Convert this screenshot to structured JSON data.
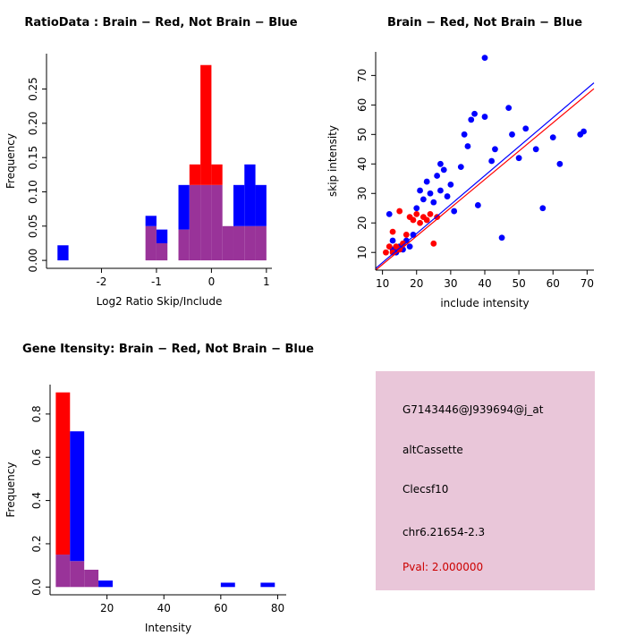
{
  "colors": {
    "red": "#FF0000",
    "blue": "#0000FF",
    "overlap": "#993399",
    "axis": "#000000",
    "info_panel_bg": "#E9C6D9",
    "pval_text": "#CC0000"
  },
  "chart_data": [
    {
      "type": "histogram",
      "title": "RatioData : Brain − Red, Not Brain − Blue",
      "xlabel": "Log2 Ratio Skip/Include",
      "ylabel": "Frequency",
      "xlim": [
        -3.0,
        1.1
      ],
      "ylim": [
        0,
        0.29
      ],
      "grid": false,
      "bin_width": 0.2,
      "xticks": [
        "-2",
        "-1",
        "0",
        "1"
      ],
      "yticks": [
        "0.00",
        "0.05",
        "0.10",
        "0.15",
        "0.20",
        "0.25"
      ],
      "series": [
        {
          "name": "Brain",
          "color": "red",
          "bins": {
            "-1.2": 0.05,
            "-1": 0.025,
            "-0.6": 0.045,
            "-0.4": 0.14,
            "-0.2": 0.285,
            "0": 0.14,
            "0.2": 0.05,
            "0.4": 0.05,
            "0.6": 0.05,
            "0.8": 0.05
          }
        },
        {
          "name": "Not Brain",
          "color": "blue",
          "bins": {
            "-2.8": 0.022,
            "-1.2": 0.065,
            "-1": 0.045,
            "-0.6": 0.11,
            "-0.4": 0.11,
            "-0.2": 0.11,
            "0": 0.11,
            "0.2": 0.05,
            "0.4": 0.11,
            "0.6": 0.14,
            "0.8": 0.11
          }
        }
      ]
    },
    {
      "type": "scatter",
      "title": "Brain − Red, Not Brain − Blue",
      "xlabel": "include intensity",
      "ylabel": "skip intensity",
      "xlim": [
        8,
        72
      ],
      "ylim": [
        4,
        78
      ],
      "grid": false,
      "xticks": [
        "10",
        "20",
        "30",
        "40",
        "50",
        "60",
        "70"
      ],
      "yticks": [
        "10",
        "20",
        "30",
        "40",
        "50",
        "60",
        "70"
      ],
      "series": [
        {
          "name": "Not Brain",
          "color": "blue",
          "points": [
            [
              12,
              23
            ],
            [
              13,
              11
            ],
            [
              13,
              14
            ],
            [
              14,
              10
            ],
            [
              15,
              12
            ],
            [
              16,
              11
            ],
            [
              17,
              14
            ],
            [
              18,
              12
            ],
            [
              19,
              16
            ],
            [
              20,
              25
            ],
            [
              21,
              31
            ],
            [
              22,
              28
            ],
            [
              23,
              34
            ],
            [
              24,
              30
            ],
            [
              25,
              27
            ],
            [
              26,
              36
            ],
            [
              27,
              31
            ],
            [
              27,
              40
            ],
            [
              28,
              38
            ],
            [
              29,
              29
            ],
            [
              30,
              33
            ],
            [
              31,
              24
            ],
            [
              33,
              39
            ],
            [
              34,
              50
            ],
            [
              35,
              46
            ],
            [
              36,
              55
            ],
            [
              37,
              57
            ],
            [
              38,
              26
            ],
            [
              40,
              76
            ],
            [
              40,
              56
            ],
            [
              42,
              41
            ],
            [
              43,
              45
            ],
            [
              45,
              15
            ],
            [
              47,
              59
            ],
            [
              48,
              50
            ],
            [
              50,
              42
            ],
            [
              52,
              52
            ],
            [
              55,
              45
            ],
            [
              57,
              25
            ],
            [
              60,
              49
            ],
            [
              62,
              40
            ],
            [
              68,
              50
            ],
            [
              69,
              51
            ]
          ]
        },
        {
          "name": "Brain",
          "color": "red",
          "points": [
            [
              11,
              10
            ],
            [
              12,
              12
            ],
            [
              13,
              10
            ],
            [
              13,
              17
            ],
            [
              14,
              12
            ],
            [
              15,
              24
            ],
            [
              15,
              11
            ],
            [
              16,
              13
            ],
            [
              17,
              16
            ],
            [
              18,
              22
            ],
            [
              19,
              21
            ],
            [
              20,
              23
            ],
            [
              21,
              20
            ],
            [
              22,
              22
            ],
            [
              23,
              21
            ],
            [
              24,
              23
            ],
            [
              25,
              13
            ],
            [
              26,
              22
            ]
          ]
        }
      ],
      "lines": [
        {
          "name": "Not Brain fit",
          "color": "blue",
          "from": [
            8,
            4.6
          ],
          "to": [
            72,
            67.5
          ]
        },
        {
          "name": "Brain fit",
          "color": "red",
          "from": [
            8,
            4.0
          ],
          "to": [
            72,
            65.5
          ]
        }
      ]
    },
    {
      "type": "histogram",
      "title": "Gene Itensity: Brain − Red, Not Brain − Blue",
      "xlabel": "Intensity",
      "ylabel": "Frequency",
      "xlim": [
        0,
        83
      ],
      "ylim": [
        0,
        0.9
      ],
      "grid": false,
      "bin_width": 5,
      "xticks": [
        "20",
        "40",
        "60",
        "80"
      ],
      "yticks": [
        "0.0",
        "0.2",
        "0.4",
        "0.6",
        "0.8"
      ],
      "series": [
        {
          "name": "Brain",
          "color": "red",
          "bins": {
            "2": 0.9,
            "7": 0.12,
            "12": 0.08
          }
        },
        {
          "name": "Not Brain",
          "color": "blue",
          "bins": {
            "2": 0.15,
            "7": 0.72,
            "12": 0.08,
            "17": 0.03,
            "60": 0.02,
            "74": 0.02
          }
        }
      ]
    }
  ],
  "info_box": {
    "lines": [
      "G7143446@J939694@j_at",
      "altCassette",
      "Clecsf10",
      "chr6.21654-2.3"
    ],
    "pval": "Pval: 2.000000"
  }
}
